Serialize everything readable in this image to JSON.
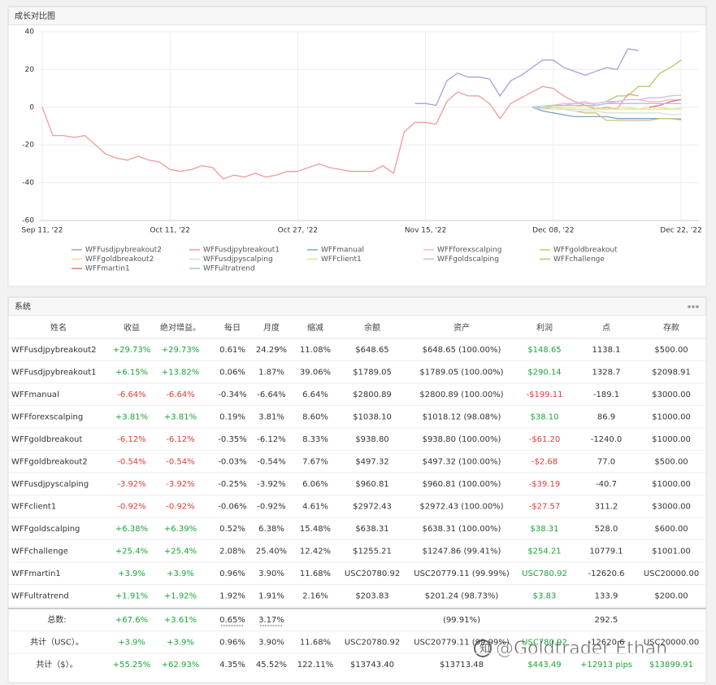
{
  "chart_panel": {
    "title": "成长对比图"
  },
  "chart_data": {
    "type": "line",
    "categories": [
      "Sep 11, '22",
      null,
      null,
      null,
      null,
      null,
      null,
      null,
      null,
      null,
      null,
      null,
      "Oct 11, '22",
      null,
      null,
      null,
      null,
      null,
      null,
      null,
      null,
      null,
      null,
      null,
      "Oct 27, '22",
      null,
      null,
      null,
      null,
      null,
      null,
      null,
      null,
      null,
      null,
      null,
      "Nov 15, '22",
      null,
      null,
      null,
      null,
      null,
      null,
      null,
      null,
      null,
      null,
      null,
      "Dec 08, '22",
      null,
      null,
      null,
      null,
      null,
      null,
      null,
      null,
      null,
      null,
      null,
      "Dec 22, '22"
    ],
    "ylim": [
      -60,
      40
    ],
    "yticks": [
      -60,
      -40,
      -20,
      0,
      20,
      40
    ],
    "grid": true,
    "series": [
      {
        "name": "WFFusdjpybreakout2",
        "color": "#b19cd9",
        "values": [
          null,
          null,
          null,
          null,
          null,
          null,
          null,
          null,
          null,
          null,
          null,
          null,
          null,
          null,
          null,
          null,
          null,
          null,
          null,
          null,
          null,
          null,
          null,
          null,
          null,
          null,
          null,
          null,
          null,
          null,
          null,
          null,
          null,
          null,
          null,
          2,
          2,
          1,
          14,
          18,
          16,
          16,
          15,
          6,
          14,
          17,
          21,
          25,
          25,
          21,
          19,
          17,
          19,
          21,
          20,
          31,
          30,
          null,
          null,
          null,
          null
        ]
      },
      {
        "name": "WFFusdjpybreakout1",
        "color": "#ef9a9a",
        "values": [
          0,
          -15,
          -15,
          -16,
          -15,
          -20,
          -25,
          -27,
          -28,
          -26,
          -28,
          -29,
          -33,
          -34,
          -33,
          -31,
          -32,
          -38,
          -36,
          -37,
          -35,
          -37,
          -36,
          -34,
          -34,
          -32,
          -30,
          -32,
          -33,
          -34,
          -34,
          -34,
          -31,
          -35,
          -13,
          -8,
          -8,
          -9,
          3,
          8,
          6,
          6,
          2,
          -6,
          2,
          5,
          8,
          11,
          10,
          6,
          3,
          1,
          -1,
          0,
          -1,
          7,
          6,
          null,
          null,
          null,
          null
        ]
      },
      {
        "name": "WFFmanual",
        "color": "#7aa6c2",
        "values": [
          null,
          null,
          null,
          null,
          null,
          null,
          null,
          null,
          null,
          null,
          null,
          null,
          null,
          null,
          null,
          null,
          null,
          null,
          null,
          null,
          null,
          null,
          null,
          null,
          null,
          null,
          null,
          null,
          null,
          null,
          null,
          null,
          null,
          null,
          null,
          null,
          null,
          null,
          null,
          null,
          null,
          null,
          null,
          null,
          null,
          null,
          0,
          -2,
          -3,
          -4,
          -5,
          -5,
          -5,
          -5,
          -6,
          -6,
          -6,
          -6,
          -6,
          -6,
          -6.6
        ]
      },
      {
        "name": "WFFforexscalping",
        "color": "#f4b6c2",
        "values": [
          null,
          null,
          null,
          null,
          null,
          null,
          null,
          null,
          null,
          null,
          null,
          null,
          null,
          null,
          null,
          null,
          null,
          null,
          null,
          null,
          null,
          null,
          null,
          null,
          null,
          null,
          null,
          null,
          null,
          null,
          null,
          null,
          null,
          null,
          null,
          null,
          null,
          null,
          null,
          null,
          null,
          null,
          null,
          null,
          null,
          null,
          0,
          0,
          1,
          2,
          2,
          3,
          1,
          2,
          3,
          4,
          4,
          3,
          3,
          4,
          3.8
        ]
      },
      {
        "name": "WFFgoldbreakout",
        "color": "#cfc271",
        "values": [
          null,
          null,
          null,
          null,
          null,
          null,
          null,
          null,
          null,
          null,
          null,
          null,
          null,
          null,
          null,
          null,
          null,
          null,
          null,
          null,
          null,
          null,
          null,
          null,
          null,
          null,
          null,
          null,
          null,
          null,
          null,
          null,
          null,
          null,
          null,
          null,
          null,
          null,
          null,
          null,
          null,
          null,
          null,
          null,
          null,
          null,
          0,
          -1,
          0,
          -1,
          -2,
          -3,
          -3,
          -7,
          -7,
          -7,
          -7,
          -7,
          -6,
          -6,
          -6.1
        ]
      },
      {
        "name": "WFFgoldbreakout2",
        "color": "#f3dfa2",
        "values": [
          null,
          null,
          null,
          null,
          null,
          null,
          null,
          null,
          null,
          null,
          null,
          null,
          null,
          null,
          null,
          null,
          null,
          null,
          null,
          null,
          null,
          null,
          null,
          null,
          null,
          null,
          null,
          null,
          null,
          null,
          null,
          null,
          null,
          null,
          null,
          null,
          null,
          null,
          null,
          null,
          null,
          null,
          null,
          null,
          null,
          null,
          0,
          1,
          1,
          0,
          0,
          1,
          0,
          -1,
          0,
          0,
          -1,
          0,
          0,
          -1,
          -0.5
        ]
      },
      {
        "name": "WFFusdjpyscalping",
        "color": "#dedede",
        "values": [
          null,
          null,
          null,
          null,
          null,
          null,
          null,
          null,
          null,
          null,
          null,
          null,
          null,
          null,
          null,
          null,
          null,
          null,
          null,
          null,
          null,
          null,
          null,
          null,
          null,
          null,
          null,
          null,
          null,
          null,
          null,
          null,
          null,
          null,
          null,
          null,
          null,
          null,
          null,
          null,
          null,
          null,
          null,
          null,
          null,
          null,
          0,
          -1,
          -1,
          -1,
          -2,
          -2,
          -2,
          -3,
          -3,
          -3,
          -3,
          -3,
          -3,
          -4,
          -3.9
        ]
      },
      {
        "name": "WFFclient1",
        "color": "#d9e58a",
        "values": [
          null,
          null,
          null,
          null,
          null,
          null,
          null,
          null,
          null,
          null,
          null,
          null,
          null,
          null,
          null,
          null,
          null,
          null,
          null,
          null,
          null,
          null,
          null,
          null,
          null,
          null,
          null,
          null,
          null,
          null,
          null,
          null,
          null,
          null,
          null,
          null,
          null,
          null,
          null,
          null,
          null,
          null,
          null,
          null,
          null,
          null,
          0,
          0,
          0,
          -1,
          -1,
          -1,
          -1,
          -1,
          -1,
          -1,
          -1,
          -1,
          -1,
          -1,
          -0.9
        ]
      },
      {
        "name": "WFFgoldscalping",
        "color": "#d7b8e8",
        "values": [
          null,
          null,
          null,
          null,
          null,
          null,
          null,
          null,
          null,
          null,
          null,
          null,
          null,
          null,
          null,
          null,
          null,
          null,
          null,
          null,
          null,
          null,
          null,
          null,
          null,
          null,
          null,
          null,
          null,
          null,
          null,
          null,
          null,
          null,
          null,
          null,
          null,
          null,
          null,
          null,
          null,
          null,
          null,
          null,
          null,
          null,
          0,
          0,
          1,
          1,
          2,
          2,
          2,
          3,
          3,
          4,
          4,
          5,
          5,
          6,
          6.4
        ]
      },
      {
        "name": "WFFchallenge",
        "color": "#b5c76a",
        "values": [
          null,
          null,
          null,
          null,
          null,
          null,
          null,
          null,
          null,
          null,
          null,
          null,
          null,
          null,
          null,
          null,
          null,
          null,
          null,
          null,
          null,
          null,
          null,
          null,
          null,
          null,
          null,
          null,
          null,
          null,
          null,
          null,
          null,
          null,
          null,
          null,
          null,
          null,
          null,
          null,
          null,
          null,
          null,
          null,
          null,
          null,
          null,
          null,
          null,
          null,
          null,
          null,
          null,
          3,
          6,
          6,
          11,
          11,
          18,
          21,
          25
        ]
      },
      {
        "name": "WFFmartin1",
        "color": "#e8766f",
        "values": [
          null,
          null,
          null,
          null,
          null,
          null,
          null,
          null,
          null,
          null,
          null,
          null,
          null,
          null,
          null,
          null,
          null,
          null,
          null,
          null,
          null,
          null,
          null,
          null,
          null,
          null,
          null,
          null,
          null,
          null,
          null,
          null,
          null,
          null,
          null,
          null,
          null,
          null,
          null,
          null,
          null,
          null,
          null,
          null,
          null,
          null,
          null,
          null,
          null,
          null,
          null,
          null,
          null,
          null,
          null,
          null,
          null,
          0,
          1,
          3,
          4
        ]
      },
      {
        "name": "WFFultratrend",
        "color": "#9ec5e0",
        "values": [
          null,
          null,
          null,
          null,
          null,
          null,
          null,
          null,
          null,
          null,
          null,
          null,
          null,
          null,
          null,
          null,
          null,
          null,
          null,
          null,
          null,
          null,
          null,
          null,
          null,
          null,
          null,
          null,
          null,
          null,
          null,
          null,
          null,
          null,
          null,
          null,
          null,
          null,
          null,
          null,
          null,
          null,
          null,
          null,
          null,
          null,
          0,
          0,
          1,
          1,
          1,
          1,
          1,
          2,
          2,
          2,
          2,
          2,
          2,
          2,
          1.9
        ]
      }
    ]
  },
  "table_panel": {
    "title": "系统"
  },
  "table": {
    "header": [
      "姓名",
      "收益",
      "绝对增益。",
      "每日",
      "月度",
      "缩减",
      "余额",
      "资产",
      "利润",
      "点",
      "存款"
    ],
    "rows": [
      [
        "WFFusdjpybreakout2",
        "+29.73%",
        "+29.73%",
        "0.61%",
        "24.29%",
        "11.08%",
        "$648.65",
        "$648.65 (100.00%)",
        "$148.65",
        "1138.1",
        "$500.00"
      ],
      [
        "WFFusdjpybreakout1",
        "+6.15%",
        "+13.82%",
        "0.06%",
        "1.87%",
        "39.06%",
        "$1789.05",
        "$1789.05 (100.00%)",
        "$290.14",
        "1328.7",
        "$2098.91"
      ],
      [
        "WFFmanual",
        "-6.64%",
        "-6.64%",
        "-0.34%",
        "-6.64%",
        "6.64%",
        "$2800.89",
        "$2800.89 (100.00%)",
        "-$199.11",
        "-189.1",
        "$3000.00"
      ],
      [
        "WFFforexscalping",
        "+3.81%",
        "+3.81%",
        "0.19%",
        "3.81%",
        "8.60%",
        "$1038.10",
        "$1018.12 (98.08%)",
        "$38.10",
        "86.9",
        "$1000.00"
      ],
      [
        "WFFgoldbreakout",
        "-6.12%",
        "-6.12%",
        "-0.35%",
        "-6.12%",
        "8.33%",
        "$938.80",
        "$938.80 (100.00%)",
        "-$61.20",
        "-1240.0",
        "$1000.00"
      ],
      [
        "WFFgoldbreakout2",
        "-0.54%",
        "-0.54%",
        "-0.03%",
        "-0.54%",
        "7.67%",
        "$497.32",
        "$497.32 (100.00%)",
        "-$2.68",
        "77.0",
        "$500.00"
      ],
      [
        "WFFusdjpyscalping",
        "-3.92%",
        "-3.92%",
        "-0.25%",
        "-3.92%",
        "6.06%",
        "$960.81",
        "$960.81 (100.00%)",
        "-$39.19",
        "-40.7",
        "$1000.00"
      ],
      [
        "WFFclient1",
        "-0.92%",
        "-0.92%",
        "-0.06%",
        "-0.92%",
        "4.61%",
        "$2972.43",
        "$2972.43 (100.00%)",
        "-$27.57",
        "311.2",
        "$3000.00"
      ],
      [
        "WFFgoldscalping",
        "+6.38%",
        "+6.39%",
        "0.52%",
        "6.38%",
        "15.48%",
        "$638.31",
        "$638.31 (100.00%)",
        "$38.31",
        "528.0",
        "$600.00"
      ],
      [
        "WFFchallenge",
        "+25.4%",
        "+25.4%",
        "2.08%",
        "25.40%",
        "12.42%",
        "$1255.21",
        "$1247.86 (99.41%)",
        "$254.21",
        "10779.1",
        "$1001.00"
      ],
      [
        "WFFmartin1",
        "+3.9%",
        "+3.9%",
        "0.96%",
        "3.90%",
        "11.68%",
        "USC20780.92",
        "USC20779.11 (99.99%)",
        "USC780.92",
        "-12620.6",
        "USC20000.00"
      ],
      [
        "WFFultratrend",
        "+1.91%",
        "+1.92%",
        "1.92%",
        "1.91%",
        "2.16%",
        "$203.83",
        "$201.24 (98.73%)",
        "$3.83",
        "133.9",
        "$200.00"
      ]
    ],
    "summary": [
      [
        "总数:",
        "+67.6%",
        "+3.61%",
        "0.65%",
        "3.17%",
        null,
        null,
        "(99.91%)",
        null,
        "292.5",
        null
      ],
      [
        "共计（USC）。",
        "+3.9%",
        "+3.9%",
        "0.96%",
        "3.90%",
        "11.68%",
        "USC20780.92",
        "USC20779.11 (99.99%)",
        "USC780.92",
        "-12620.6",
        "USC20000.00"
      ],
      [
        "共计（$）。",
        "+55.25%",
        "+62.93%",
        "4.35%",
        "45.52%",
        "122.11%",
        "$13743.40",
        "$13713.48",
        "$443.49",
        "+12913 pips",
        "$13899.91"
      ]
    ]
  },
  "watermark": "@Goldtrader Ethan"
}
